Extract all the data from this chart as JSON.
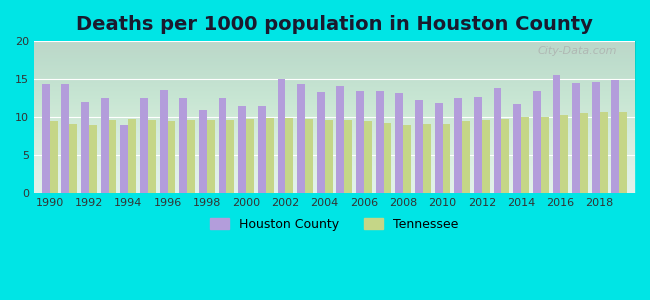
{
  "title": "Deaths per 1000 population in Houston County",
  "years": [
    1990,
    1991,
    1992,
    1993,
    1994,
    1995,
    1996,
    1997,
    1998,
    1999,
    2000,
    2001,
    2002,
    2003,
    2004,
    2005,
    2006,
    2007,
    2008,
    2009,
    2010,
    2011,
    2012,
    2013,
    2014,
    2015,
    2016,
    2017,
    2018,
    2019
  ],
  "houston_county": [
    14.4,
    14.3,
    12.0,
    12.5,
    9.0,
    12.5,
    13.6,
    12.5,
    11.0,
    12.5,
    11.5,
    11.5,
    15.0,
    14.4,
    13.3,
    14.1,
    13.5,
    13.5,
    13.2,
    12.2,
    11.9,
    12.5,
    12.7,
    13.9,
    11.8,
    13.4,
    15.5,
    14.5,
    14.6,
    14.9
  ],
  "tennessee": [
    9.5,
    9.1,
    9.0,
    9.7,
    9.8,
    9.6,
    9.5,
    9.6,
    9.6,
    9.7,
    9.8,
    9.9,
    9.9,
    9.8,
    9.6,
    9.7,
    9.5,
    9.3,
    9.0,
    9.1,
    9.1,
    9.5,
    9.6,
    9.8,
    10.0,
    10.0,
    10.3,
    10.5,
    10.7,
    10.7
  ],
  "houston_color": "#b39ddb",
  "tennessee_color": "#c5d687",
  "background_color": "#00e5e5",
  "plot_bg_top": "#d6ede8",
  "plot_bg_bottom": "#e8f5e9",
  "ylim": [
    0,
    20
  ],
  "yticks": [
    0,
    5,
    10,
    15,
    20
  ],
  "xticks": [
    1990,
    1992,
    1994,
    1996,
    1998,
    2000,
    2002,
    2004,
    2006,
    2008,
    2010,
    2012,
    2014,
    2016,
    2018
  ],
  "title_fontsize": 14,
  "legend_houston": "Houston County",
  "legend_tennessee": "Tennessee",
  "watermark": "City-Data.com"
}
